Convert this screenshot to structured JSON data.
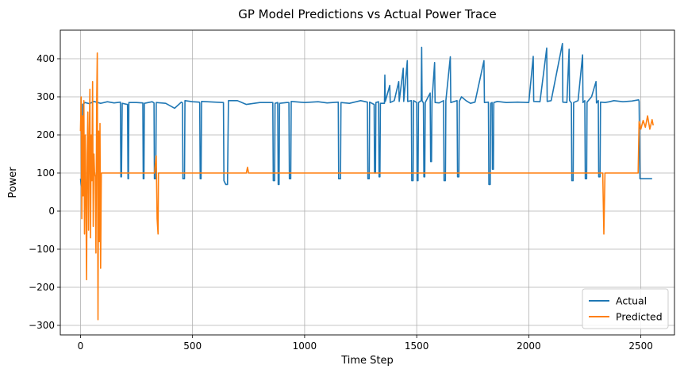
{
  "chart_data": {
    "type": "line",
    "title": "GP Model Predictions vs Actual Power Trace",
    "xlabel": "Time Step",
    "ylabel": "Power",
    "xlim": [
      -90,
      2650
    ],
    "ylim": [
      -325,
      475
    ],
    "xticks": [
      0,
      500,
      1000,
      1500,
      2000,
      2500
    ],
    "yticks": [
      -300,
      -200,
      -100,
      0,
      100,
      200,
      300,
      400
    ],
    "grid": true,
    "legend_position": "lower right",
    "series": [
      {
        "name": "Actual",
        "color": "#1f77b4",
        "points": [
          [
            0,
            85
          ],
          [
            5,
            65
          ],
          [
            10,
            280
          ],
          [
            20,
            285
          ],
          [
            40,
            282
          ],
          [
            60,
            288
          ],
          [
            90,
            283
          ],
          [
            120,
            287
          ],
          [
            150,
            284
          ],
          [
            178,
            286
          ],
          [
            180,
            90
          ],
          [
            183,
            90
          ],
          [
            186,
            283
          ],
          [
            210,
            280
          ],
          [
            212,
            85
          ],
          [
            214,
            85
          ],
          [
            216,
            285
          ],
          [
            250,
            285
          ],
          [
            278,
            284
          ],
          [
            280,
            85
          ],
          [
            283,
            85
          ],
          [
            285,
            283
          ],
          [
            320,
            287
          ],
          [
            328,
            284
          ],
          [
            330,
            85
          ],
          [
            336,
            85
          ],
          [
            338,
            285
          ],
          [
            380,
            283
          ],
          [
            420,
            270
          ],
          [
            450,
            286
          ],
          [
            455,
            284
          ],
          [
            457,
            85
          ],
          [
            464,
            85
          ],
          [
            466,
            290
          ],
          [
            500,
            287
          ],
          [
            530,
            286
          ],
          [
            532,
            284
          ],
          [
            534,
            85
          ],
          [
            538,
            85
          ],
          [
            540,
            288
          ],
          [
            600,
            286
          ],
          [
            638,
            285
          ],
          [
            640,
            80
          ],
          [
            648,
            70
          ],
          [
            656,
            70
          ],
          [
            660,
            290
          ],
          [
            700,
            290
          ],
          [
            740,
            280
          ],
          [
            800,
            285
          ],
          [
            858,
            285
          ],
          [
            860,
            80
          ],
          [
            866,
            80
          ],
          [
            868,
            283
          ],
          [
            880,
            285
          ],
          [
            882,
            70
          ],
          [
            886,
            70
          ],
          [
            888,
            283
          ],
          [
            920,
            285
          ],
          [
            930,
            285
          ],
          [
            932,
            85
          ],
          [
            938,
            85
          ],
          [
            940,
            288
          ],
          [
            1000,
            285
          ],
          [
            1060,
            287
          ],
          [
            1100,
            284
          ],
          [
            1150,
            286
          ],
          [
            1152,
            85
          ],
          [
            1160,
            85
          ],
          [
            1162,
            285
          ],
          [
            1200,
            283
          ],
          [
            1250,
            290
          ],
          [
            1280,
            286
          ],
          [
            1282,
            85
          ],
          [
            1288,
            85
          ],
          [
            1290,
            286
          ],
          [
            1310,
            280
          ],
          [
            1312,
            100
          ],
          [
            1316,
            100
          ],
          [
            1318,
            285
          ],
          [
            1330,
            287
          ],
          [
            1332,
            90
          ],
          [
            1336,
            90
          ],
          [
            1338,
            283
          ],
          [
            1356,
            283
          ],
          [
            1358,
            357
          ],
          [
            1360,
            288
          ],
          [
            1380,
            330
          ],
          [
            1382,
            285
          ],
          [
            1400,
            290
          ],
          [
            1420,
            340
          ],
          [
            1422,
            288
          ],
          [
            1440,
            375
          ],
          [
            1442,
            288
          ],
          [
            1458,
            395
          ],
          [
            1460,
            288
          ],
          [
            1476,
            290
          ],
          [
            1478,
            80
          ],
          [
            1484,
            80
          ],
          [
            1486,
            290
          ],
          [
            1500,
            285
          ],
          [
            1502,
            80
          ],
          [
            1506,
            80
          ],
          [
            1508,
            285
          ],
          [
            1520,
            290
          ],
          [
            1522,
            430
          ],
          [
            1524,
            290
          ],
          [
            1530,
            284
          ],
          [
            1532,
            90
          ],
          [
            1536,
            90
          ],
          [
            1538,
            285
          ],
          [
            1560,
            310
          ],
          [
            1562,
            130
          ],
          [
            1566,
            130
          ],
          [
            1568,
            288
          ],
          [
            1580,
            390
          ],
          [
            1582,
            285
          ],
          [
            1600,
            284
          ],
          [
            1620,
            290
          ],
          [
            1622,
            80
          ],
          [
            1628,
            80
          ],
          [
            1630,
            290
          ],
          [
            1650,
            405
          ],
          [
            1652,
            285
          ],
          [
            1680,
            290
          ],
          [
            1682,
            90
          ],
          [
            1688,
            90
          ],
          [
            1690,
            288
          ],
          [
            1700,
            300
          ],
          [
            1720,
            290
          ],
          [
            1740,
            283
          ],
          [
            1760,
            286
          ],
          [
            1800,
            395
          ],
          [
            1802,
            285
          ],
          [
            1820,
            286
          ],
          [
            1822,
            70
          ],
          [
            1828,
            70
          ],
          [
            1830,
            283
          ],
          [
            1836,
            285
          ],
          [
            1838,
            110
          ],
          [
            1842,
            110
          ],
          [
            1844,
            285
          ],
          [
            1860,
            288
          ],
          [
            1900,
            285
          ],
          [
            1950,
            286
          ],
          [
            2000,
            285
          ],
          [
            2020,
            406
          ],
          [
            2022,
            288
          ],
          [
            2050,
            287
          ],
          [
            2080,
            428
          ],
          [
            2082,
            288
          ],
          [
            2100,
            290
          ],
          [
            2150,
            440
          ],
          [
            2152,
            286
          ],
          [
            2170,
            285
          ],
          [
            2180,
            425
          ],
          [
            2182,
            290
          ],
          [
            2190,
            284
          ],
          [
            2192,
            80
          ],
          [
            2198,
            80
          ],
          [
            2200,
            285
          ],
          [
            2220,
            290
          ],
          [
            2240,
            410
          ],
          [
            2242,
            285
          ],
          [
            2250,
            290
          ],
          [
            2252,
            85
          ],
          [
            2258,
            85
          ],
          [
            2260,
            286
          ],
          [
            2280,
            300
          ],
          [
            2300,
            340
          ],
          [
            2302,
            284
          ],
          [
            2310,
            290
          ],
          [
            2312,
            90
          ],
          [
            2318,
            90
          ],
          [
            2320,
            286
          ],
          [
            2340,
            285
          ],
          [
            2360,
            287
          ],
          [
            2380,
            290
          ],
          [
            2420,
            287
          ],
          [
            2460,
            289
          ],
          [
            2490,
            292
          ],
          [
            2492,
            288
          ],
          [
            2496,
            85
          ],
          [
            2550,
            85
          ]
        ]
      },
      {
        "name": "Predicted",
        "color": "#ff7f0e",
        "points": [
          [
            0,
            210
          ],
          [
            3,
            300
          ],
          [
            6,
            -20
          ],
          [
            9,
            250
          ],
          [
            12,
            40
          ],
          [
            15,
            290
          ],
          [
            18,
            -60
          ],
          [
            21,
            200
          ],
          [
            24,
            60
          ],
          [
            27,
            -180
          ],
          [
            30,
            150
          ],
          [
            33,
            260
          ],
          [
            36,
            -50
          ],
          [
            39,
            180
          ],
          [
            42,
            320
          ],
          [
            45,
            -70
          ],
          [
            48,
            200
          ],
          [
            51,
            80
          ],
          [
            54,
            340
          ],
          [
            57,
            -40
          ],
          [
            60,
            150
          ],
          [
            63,
            100
          ],
          [
            66,
            90
          ],
          [
            69,
            -110
          ],
          [
            72,
            280
          ],
          [
            75,
            415
          ],
          [
            78,
            -285
          ],
          [
            81,
            210
          ],
          [
            84,
            -80
          ],
          [
            87,
            230
          ],
          [
            90,
            -150
          ],
          [
            93,
            100
          ],
          [
            96,
            100
          ],
          [
            100,
            100
          ],
          [
            200,
            100
          ],
          [
            300,
            100
          ],
          [
            330,
            100
          ],
          [
            338,
            145
          ],
          [
            342,
            -20
          ],
          [
            346,
            -60
          ],
          [
            348,
            100
          ],
          [
            400,
            100
          ],
          [
            500,
            100
          ],
          [
            600,
            100
          ],
          [
            700,
            100
          ],
          [
            740,
            100
          ],
          [
            745,
            115
          ],
          [
            750,
            100
          ],
          [
            800,
            100
          ],
          [
            900,
            100
          ],
          [
            1000,
            100
          ],
          [
            1200,
            100
          ],
          [
            1400,
            100
          ],
          [
            1600,
            100
          ],
          [
            1800,
            100
          ],
          [
            2000,
            100
          ],
          [
            2200,
            100
          ],
          [
            2330,
            100
          ],
          [
            2335,
            -60
          ],
          [
            2340,
            100
          ],
          [
            2400,
            100
          ],
          [
            2488,
            100
          ],
          [
            2492,
            235
          ],
          [
            2500,
            215
          ],
          [
            2510,
            238
          ],
          [
            2520,
            220
          ],
          [
            2530,
            250
          ],
          [
            2540,
            215
          ],
          [
            2550,
            240
          ],
          [
            2555,
            225
          ]
        ]
      }
    ]
  }
}
